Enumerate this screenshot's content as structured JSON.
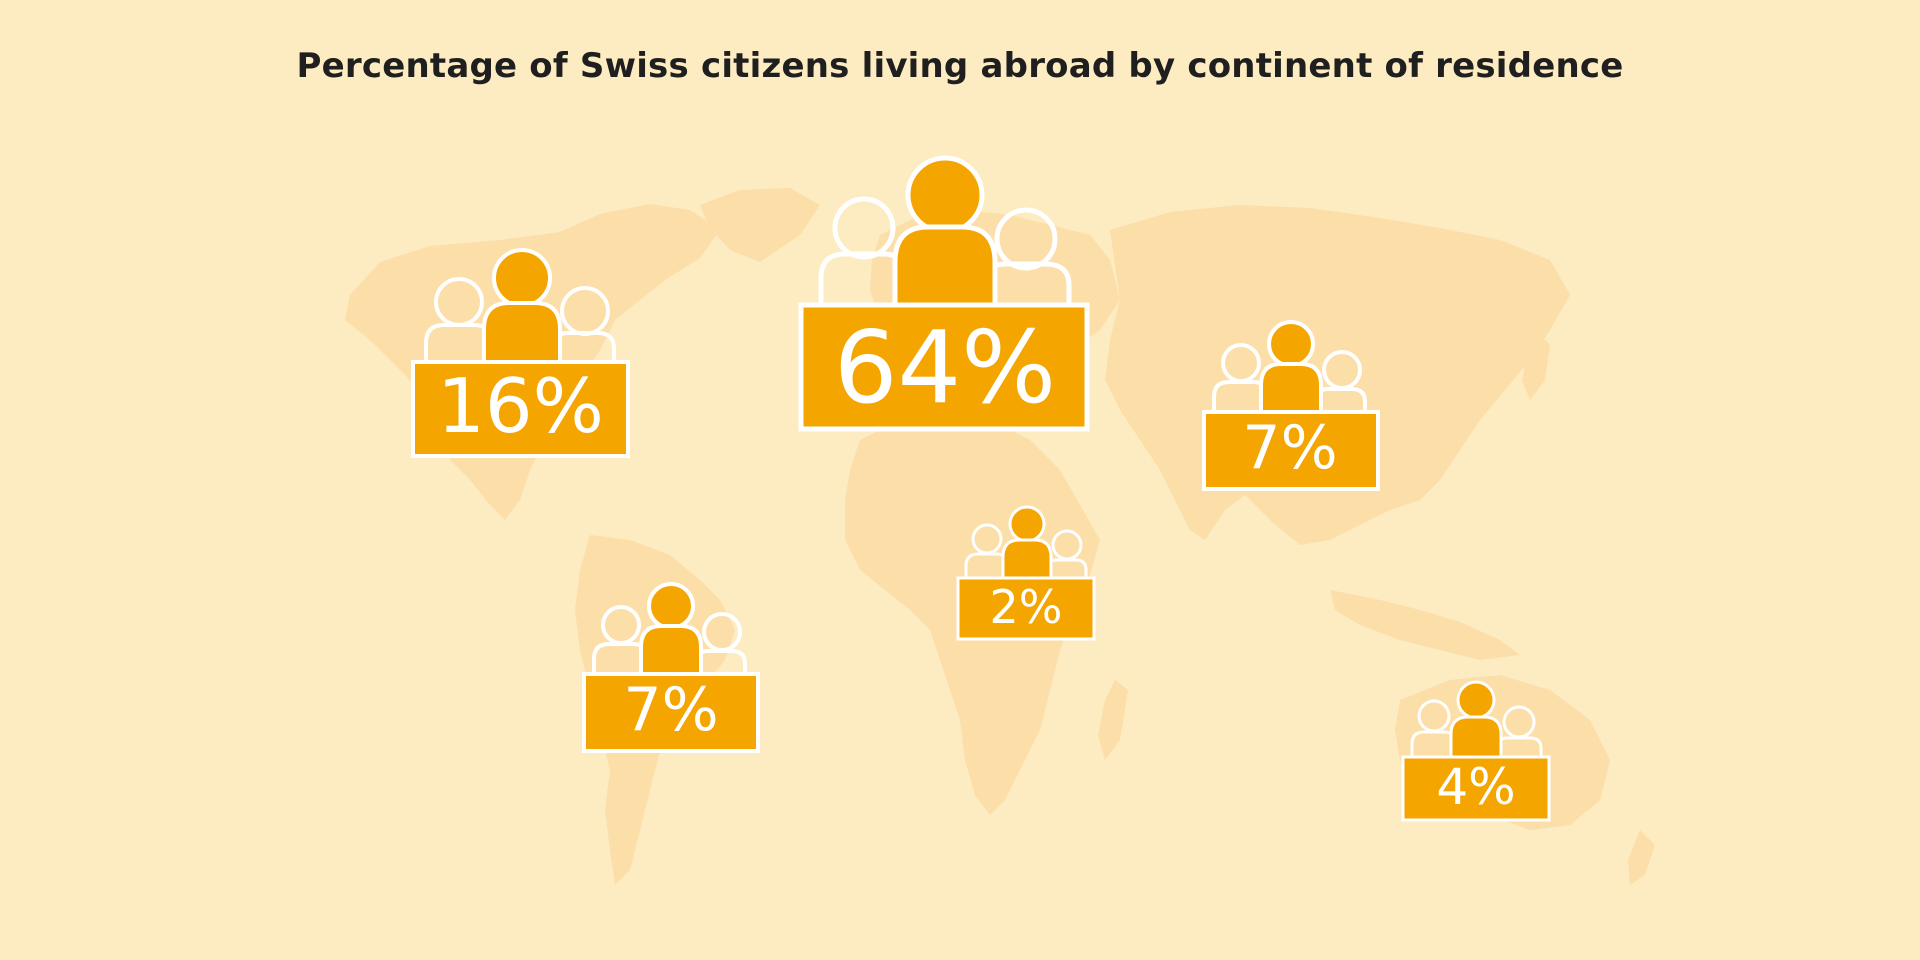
{
  "title": "Percentage of Swiss citizens living abroad by continent of residence",
  "colors": {
    "background": "#fdebc1",
    "land": "#fcdea9",
    "accent": "#f5a500",
    "stroke": "#ffffff",
    "title": "#1f1f1f"
  },
  "icon": "people-group-icon",
  "chart_data": {
    "type": "map",
    "title": "Percentage of Swiss citizens living abroad by continent of residence",
    "unit": "%",
    "regions": [
      {
        "value": 64,
        "label": "64%"
      },
      {
        "value": 16,
        "label": "16%"
      },
      {
        "value": 7,
        "label": "7%"
      },
      {
        "value": 2,
        "label": "2%"
      },
      {
        "value": 7,
        "label": "7%"
      },
      {
        "value": 4,
        "label": "4%"
      }
    ]
  }
}
